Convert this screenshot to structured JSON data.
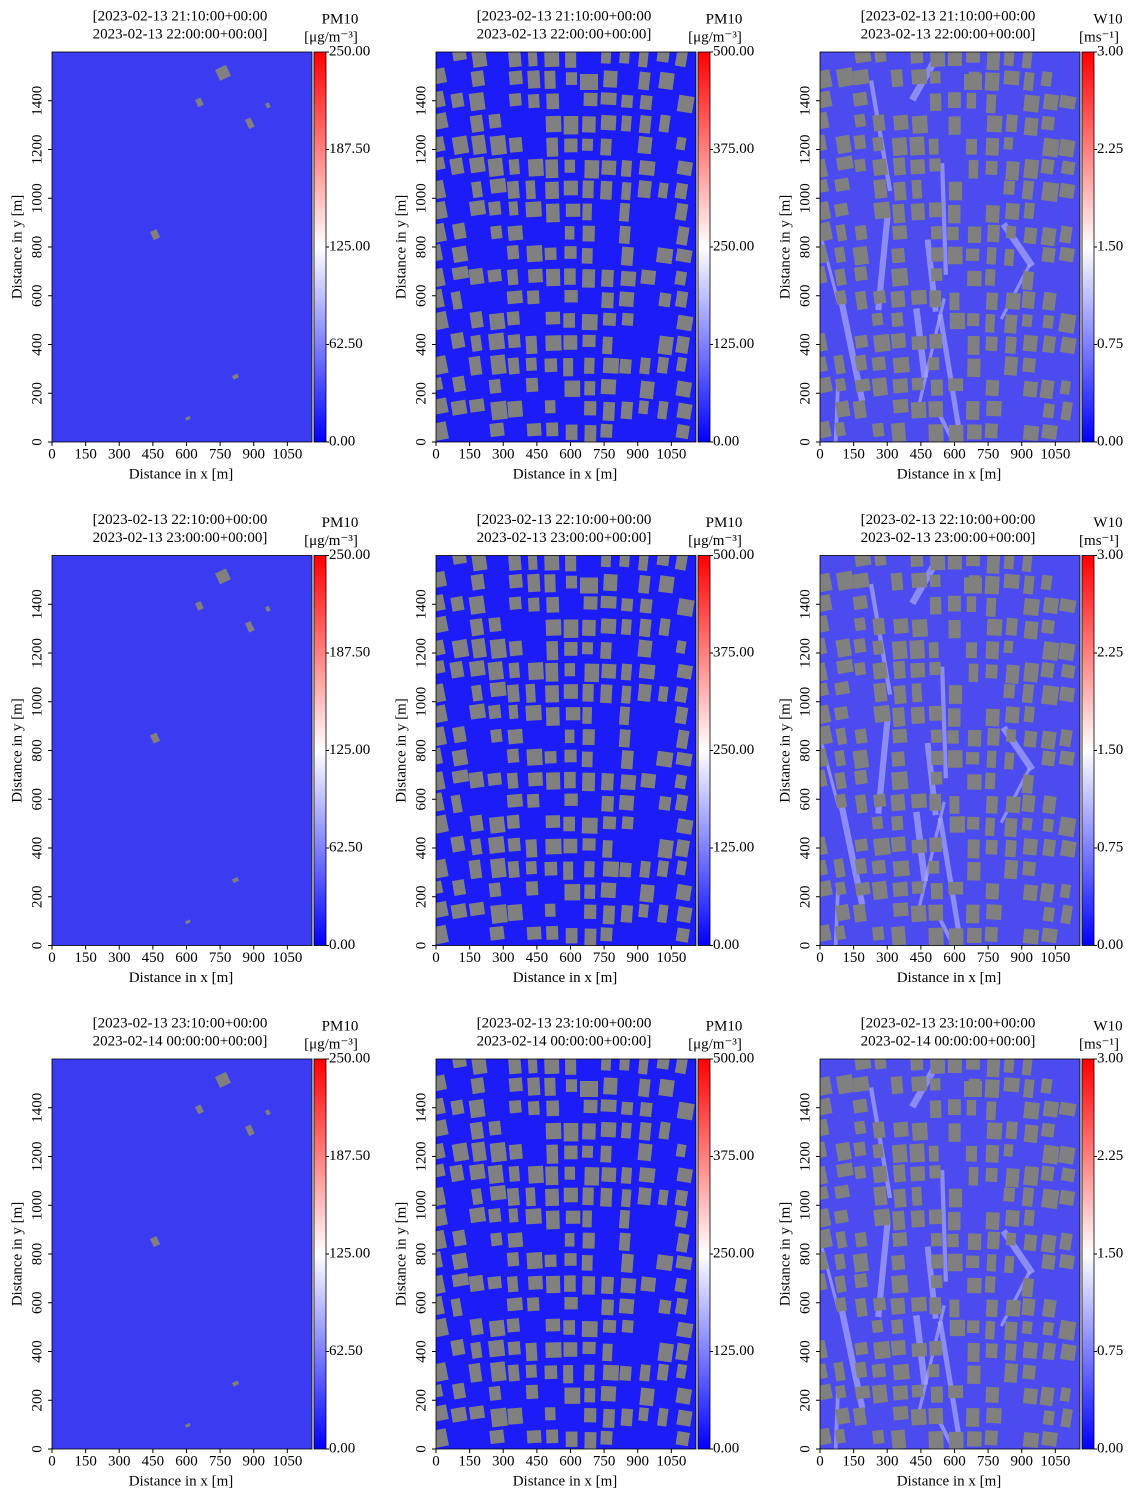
{
  "chart_data": [
    {
      "type": "heatmap",
      "title": [
        "[2023-02-13 21:10:00+00:00",
        "2023-02-13 22:00:00+00:00]"
      ],
      "cbar_label": [
        "PM10",
        "[μg/m⁻³]"
      ],
      "xlabel": "Distance in x [m]",
      "ylabel": "Distance in y [m]",
      "xlim": [
        0,
        1160
      ],
      "ylim": [
        0,
        1600
      ],
      "xticks": [
        0,
        150,
        300,
        450,
        600,
        750,
        900,
        1050
      ],
      "yticks": [
        0,
        200,
        400,
        600,
        800,
        1000,
        1200,
        1400
      ],
      "clim": [
        0,
        250
      ],
      "cticks": [
        {
          "value": 0,
          "label": "0.00"
        },
        {
          "value": 62.5,
          "label": "62.50"
        },
        {
          "value": 125,
          "label": "125.00"
        },
        {
          "value": 187.5,
          "label": "187.50"
        },
        {
          "value": 250,
          "label": "250.00"
        }
      ],
      "colors": [
        "#0000ff",
        "#ffffff",
        "#ff0000"
      ],
      "field_color": "#3b3bf2"
    },
    {
      "type": "heatmap",
      "title": [
        "[2023-02-13 21:10:00+00:00",
        "2023-02-13 22:00:00+00:00]"
      ],
      "cbar_label": [
        "PM10",
        "[μg/m⁻³]"
      ],
      "xlabel": "Distance in x [m]",
      "ylabel": "Distance in y [m]",
      "xlim": [
        0,
        1160
      ],
      "ylim": [
        0,
        1600
      ],
      "xticks": [
        0,
        150,
        300,
        450,
        600,
        750,
        900,
        1050
      ],
      "yticks": [
        0,
        200,
        400,
        600,
        800,
        1000,
        1200,
        1400
      ],
      "clim": [
        0,
        500
      ],
      "cticks": [
        {
          "value": 0,
          "label": "0.00"
        },
        {
          "value": 125,
          "label": "125.00"
        },
        {
          "value": 250,
          "label": "250.00"
        },
        {
          "value": 375,
          "label": "375.00"
        },
        {
          "value": 500,
          "label": "500.00"
        }
      ],
      "colors": [
        "#0000ff",
        "#ffffff",
        "#ff0000"
      ],
      "field_color": "#1c1cf8"
    },
    {
      "type": "heatmap",
      "title": [
        "[2023-02-13 21:10:00+00:00",
        "2023-02-13 22:00:00+00:00]"
      ],
      "cbar_label": [
        "W10",
        "[ms⁻¹]"
      ],
      "xlabel": "Distance in x [m]",
      "ylabel": "Distance in y [m]",
      "xlim": [
        0,
        1160
      ],
      "ylim": [
        0,
        1600
      ],
      "xticks": [
        0,
        150,
        300,
        450,
        600,
        750,
        900,
        1050
      ],
      "yticks": [
        0,
        200,
        400,
        600,
        800,
        1000,
        1200,
        1400
      ],
      "clim": [
        0,
        3
      ],
      "cticks": [
        {
          "value": 0,
          "label": "0.00"
        },
        {
          "value": 0.75,
          "label": "0.75"
        },
        {
          "value": 1.5,
          "label": "1.50"
        },
        {
          "value": 2.25,
          "label": "2.25"
        },
        {
          "value": 3,
          "label": "3.00"
        }
      ],
      "colors": [
        "#0000ff",
        "#ffffff",
        "#ff0000"
      ],
      "field_color": "#4b4bf0"
    },
    {
      "type": "heatmap",
      "title": [
        "[2023-02-13 22:10:00+00:00",
        "2023-02-13 23:00:00+00:00]"
      ],
      "cbar_label": [
        "PM10",
        "[μg/m⁻³]"
      ],
      "xlabel": "Distance in x [m]",
      "ylabel": "Distance in y [m]",
      "xlim": [
        0,
        1160
      ],
      "ylim": [
        0,
        1600
      ],
      "xticks": [
        0,
        150,
        300,
        450,
        600,
        750,
        900,
        1050
      ],
      "yticks": [
        0,
        200,
        400,
        600,
        800,
        1000,
        1200,
        1400
      ],
      "clim": [
        0,
        250
      ],
      "cticks": [
        {
          "value": 0,
          "label": "0.00"
        },
        {
          "value": 62.5,
          "label": "62.50"
        },
        {
          "value": 125,
          "label": "125.00"
        },
        {
          "value": 187.5,
          "label": "187.50"
        },
        {
          "value": 250,
          "label": "250.00"
        }
      ],
      "colors": [
        "#0000ff",
        "#ffffff",
        "#ff0000"
      ],
      "field_color": "#3b3bf2"
    },
    {
      "type": "heatmap",
      "title": [
        "[2023-02-13 22:10:00+00:00",
        "2023-02-13 23:00:00+00:00]"
      ],
      "cbar_label": [
        "PM10",
        "[μg/m⁻³]"
      ],
      "xlabel": "Distance in x [m]",
      "ylabel": "Distance in y [m]",
      "xlim": [
        0,
        1160
      ],
      "ylim": [
        0,
        1600
      ],
      "xticks": [
        0,
        150,
        300,
        450,
        600,
        750,
        900,
        1050
      ],
      "yticks": [
        0,
        200,
        400,
        600,
        800,
        1000,
        1200,
        1400
      ],
      "clim": [
        0,
        500
      ],
      "cticks": [
        {
          "value": 0,
          "label": "0.00"
        },
        {
          "value": 125,
          "label": "125.00"
        },
        {
          "value": 250,
          "label": "250.00"
        },
        {
          "value": 375,
          "label": "375.00"
        },
        {
          "value": 500,
          "label": "500.00"
        }
      ],
      "colors": [
        "#0000ff",
        "#ffffff",
        "#ff0000"
      ],
      "field_color": "#1c1cf8"
    },
    {
      "type": "heatmap",
      "title": [
        "[2023-02-13 22:10:00+00:00",
        "2023-02-13 23:00:00+00:00]"
      ],
      "cbar_label": [
        "W10",
        "[ms⁻¹]"
      ],
      "xlabel": "Distance in x [m]",
      "ylabel": "Distance in y [m]",
      "xlim": [
        0,
        1160
      ],
      "ylim": [
        0,
        1600
      ],
      "xticks": [
        0,
        150,
        300,
        450,
        600,
        750,
        900,
        1050
      ],
      "yticks": [
        0,
        200,
        400,
        600,
        800,
        1000,
        1200,
        1400
      ],
      "clim": [
        0,
        3
      ],
      "cticks": [
        {
          "value": 0,
          "label": "0.00"
        },
        {
          "value": 0.75,
          "label": "0.75"
        },
        {
          "value": 1.5,
          "label": "1.50"
        },
        {
          "value": 2.25,
          "label": "2.25"
        },
        {
          "value": 3,
          "label": "3.00"
        }
      ],
      "colors": [
        "#0000ff",
        "#ffffff",
        "#ff0000"
      ],
      "field_color": "#4b4bf0"
    },
    {
      "type": "heatmap",
      "title": [
        "[2023-02-13 23:10:00+00:00",
        "2023-02-14 00:00:00+00:00]"
      ],
      "cbar_label": [
        "PM10",
        "[μg/m⁻³]"
      ],
      "xlabel": "Distance in x [m]",
      "ylabel": "Distance in y [m]",
      "xlim": [
        0,
        1160
      ],
      "ylim": [
        0,
        1600
      ],
      "xticks": [
        0,
        150,
        300,
        450,
        600,
        750,
        900,
        1050
      ],
      "yticks": [
        0,
        200,
        400,
        600,
        800,
        1000,
        1200,
        1400
      ],
      "clim": [
        0,
        250
      ],
      "cticks": [
        {
          "value": 0,
          "label": "0.00"
        },
        {
          "value": 62.5,
          "label": "62.50"
        },
        {
          "value": 125,
          "label": "125.00"
        },
        {
          "value": 187.5,
          "label": "187.50"
        },
        {
          "value": 250,
          "label": "250.00"
        }
      ],
      "colors": [
        "#0000ff",
        "#ffffff",
        "#ff0000"
      ],
      "field_color": "#3b3bf2"
    },
    {
      "type": "heatmap",
      "title": [
        "[2023-02-13 23:10:00+00:00",
        "2023-02-14 00:00:00+00:00]"
      ],
      "cbar_label": [
        "PM10",
        "[μg/m⁻³]"
      ],
      "xlabel": "Distance in x [m]",
      "ylabel": "Distance in y [m]",
      "xlim": [
        0,
        1160
      ],
      "ylim": [
        0,
        1600
      ],
      "xticks": [
        0,
        150,
        300,
        450,
        600,
        750,
        900,
        1050
      ],
      "yticks": [
        0,
        200,
        400,
        600,
        800,
        1000,
        1200,
        1400
      ],
      "clim": [
        0,
        500
      ],
      "cticks": [
        {
          "value": 0,
          "label": "0.00"
        },
        {
          "value": 125,
          "label": "125.00"
        },
        {
          "value": 250,
          "label": "250.00"
        },
        {
          "value": 375,
          "label": "375.00"
        },
        {
          "value": 500,
          "label": "500.00"
        }
      ],
      "colors": [
        "#0000ff",
        "#ffffff",
        "#ff0000"
      ],
      "field_color": "#1c1cf8"
    },
    {
      "type": "heatmap",
      "title": [
        "[2023-02-13 23:10:00+00:00",
        "2023-02-14 00:00:00+00:00]"
      ],
      "cbar_label": [
        "W10",
        "[ms⁻¹]"
      ],
      "xlabel": "Distance in x [m]",
      "ylabel": "Distance in y [m]",
      "xlim": [
        0,
        1160
      ],
      "ylim": [
        0,
        1600
      ],
      "xticks": [
        0,
        150,
        300,
        450,
        600,
        750,
        900,
        1050
      ],
      "yticks": [
        0,
        200,
        400,
        600,
        800,
        1000,
        1200,
        1400
      ],
      "clim": [
        0,
        3
      ],
      "cticks": [
        {
          "value": 0,
          "label": "0.00"
        },
        {
          "value": 0.75,
          "label": "0.75"
        },
        {
          "value": 1.5,
          "label": "1.50"
        },
        {
          "value": 2.25,
          "label": "2.25"
        },
        {
          "value": 3,
          "label": "3.00"
        }
      ],
      "colors": [
        "#0000ff",
        "#ffffff",
        "#ff0000"
      ],
      "field_color": "#4b4bf0"
    }
  ]
}
